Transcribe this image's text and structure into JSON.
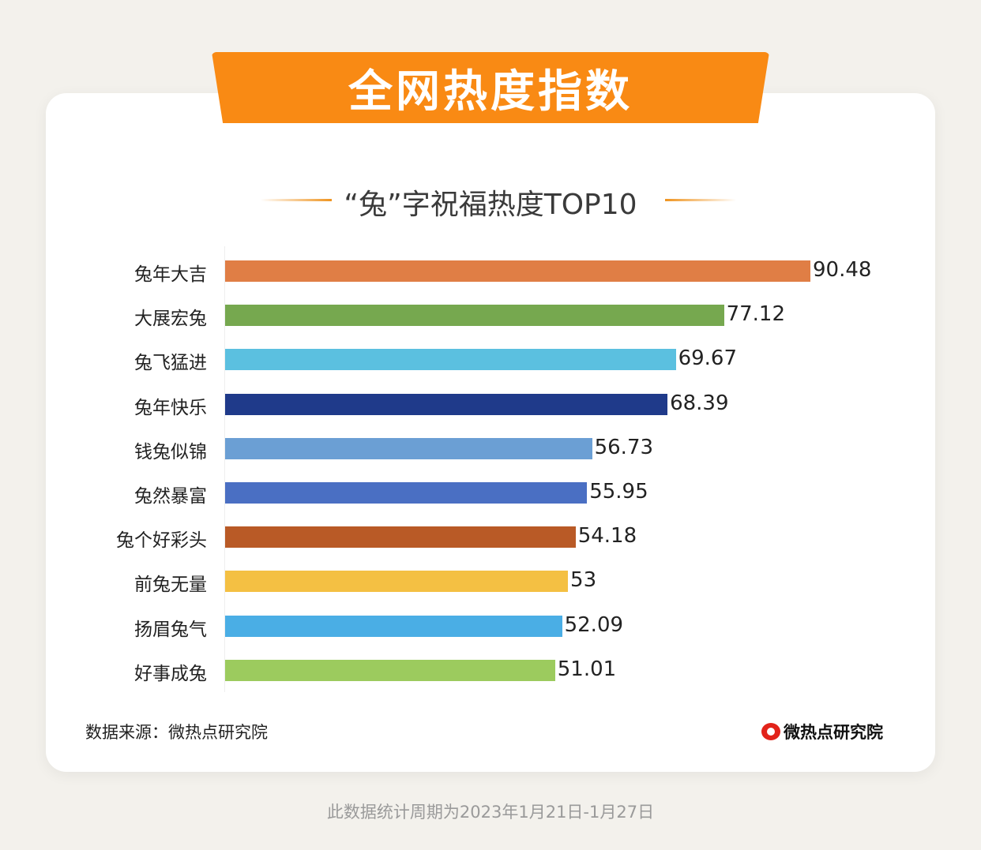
{
  "banner_title": "全网热度指数",
  "chart_data": {
    "type": "bar",
    "orientation": "horizontal",
    "title": "“兔”字祝福热度TOP10",
    "categories": [
      "兔年大吉",
      "大展宏兔",
      "兔飞猛进",
      "兔年快乐",
      "钱兔似锦",
      "兔然暴富",
      "兔个好彩头",
      "前兔无量",
      "扬眉兔气",
      "好事成兔"
    ],
    "values": [
      90.48,
      77.12,
      69.67,
      68.39,
      56.73,
      55.95,
      54.18,
      53,
      52.09,
      51.01
    ],
    "value_labels": [
      "90.48",
      "77.12",
      "69.67",
      "68.39",
      "56.73",
      "55.95",
      "54.18",
      "53",
      "52.09",
      "51.01"
    ],
    "colors": [
      "#e07e45",
      "#76a84f",
      "#5bc0e0",
      "#1f3a8a",
      "#6b9fd4",
      "#4a6fc3",
      "#b95a26",
      "#f4c043",
      "#4aaee5",
      "#9ccb5e"
    ],
    "xlim": [
      0,
      90.48
    ],
    "grid": false,
    "legend": "none"
  },
  "source": "数据来源：微热点研究院",
  "logo_text": "微热点研究院",
  "footer": "此数据统计周期为2023年1月21日-1月27日"
}
